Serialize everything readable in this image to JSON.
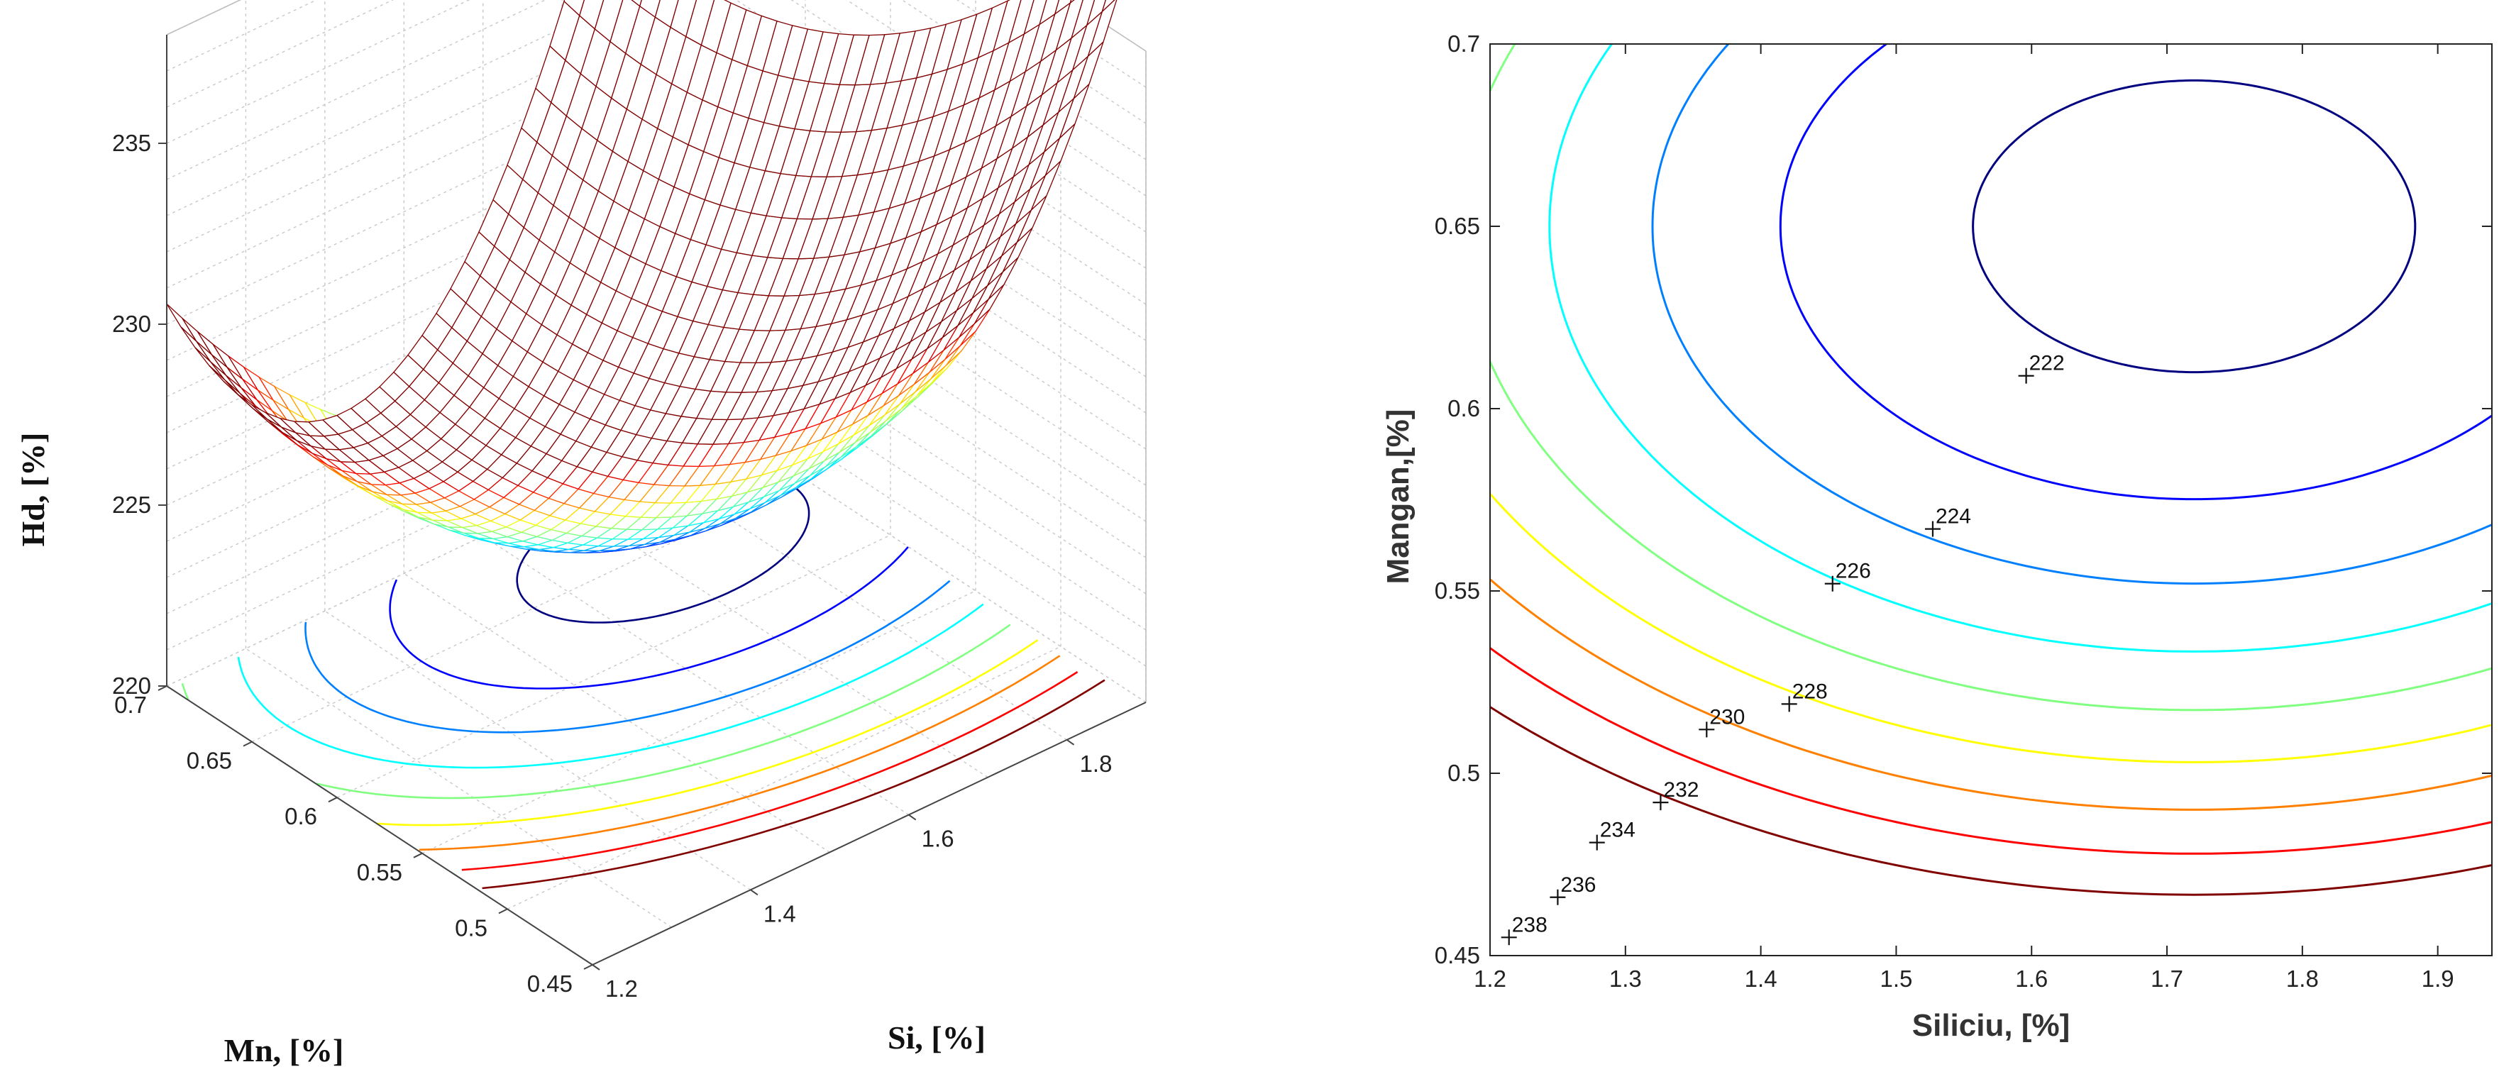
{
  "chart_data": [
    {
      "type": "surface3d",
      "title": "",
      "xlabel": "Si, [%]",
      "ylabel": "Mn, [%]",
      "zlabel": "Hd, [%]",
      "x_ticks": [
        "1.2",
        "1.4",
        "1.6",
        "1.8"
      ],
      "y_ticks": [
        "0.45",
        "0.5",
        "0.55",
        "0.6",
        "0.65",
        "0.7"
      ],
      "z_ticks": [
        "220",
        "225",
        "230",
        "235"
      ],
      "xlim": [
        1.2,
        1.9
      ],
      "ylim": [
        0.45,
        0.7
      ],
      "zlim": [
        220,
        238
      ],
      "colormap": "jet",
      "grid": true,
      "surface_minimum": {
        "x": 1.72,
        "y": 0.65,
        "z": 221.2
      },
      "floor_contour_levels": [
        222,
        224,
        226,
        228,
        230,
        232,
        234,
        236,
        238
      ]
    },
    {
      "type": "contour",
      "title": "",
      "xlabel": "Siliciu, [%]",
      "ylabel": "Mangan,[%]",
      "x_ticks": [
        "1.2",
        "1.3",
        "1.4",
        "1.5",
        "1.6",
        "1.7",
        "1.8",
        "1.9"
      ],
      "y_ticks": [
        "0.45",
        "0.5",
        "0.55",
        "0.6",
        "0.65",
        "0.7"
      ],
      "xlim": [
        1.2,
        1.94
      ],
      "ylim": [
        0.45,
        0.7
      ],
      "levels": [
        {
          "value": 222,
          "label": "222",
          "label_x": 1.596,
          "label_y": 0.609
        },
        {
          "value": 224,
          "label": "224",
          "label_x": 1.527,
          "label_y": 0.567
        },
        {
          "value": 226,
          "label": "226",
          "label_x": 1.453,
          "label_y": 0.552
        },
        {
          "value": 228,
          "label": "228",
          "label_x": 1.421,
          "label_y": 0.519
        },
        {
          "value": 230,
          "label": "230",
          "label_x": 1.36,
          "label_y": 0.512
        },
        {
          "value": 232,
          "label": "232",
          "label_x": 1.326,
          "label_y": 0.492
        },
        {
          "value": 234,
          "label": "234",
          "label_x": 1.279,
          "label_y": 0.481
        },
        {
          "value": 236,
          "label": "236",
          "label_x": 1.25,
          "label_y": 0.466
        },
        {
          "value": 238,
          "label": "238",
          "label_x": 1.214,
          "label_y": 0.455
        }
      ],
      "colormap": "jet",
      "grid": false
    }
  ]
}
